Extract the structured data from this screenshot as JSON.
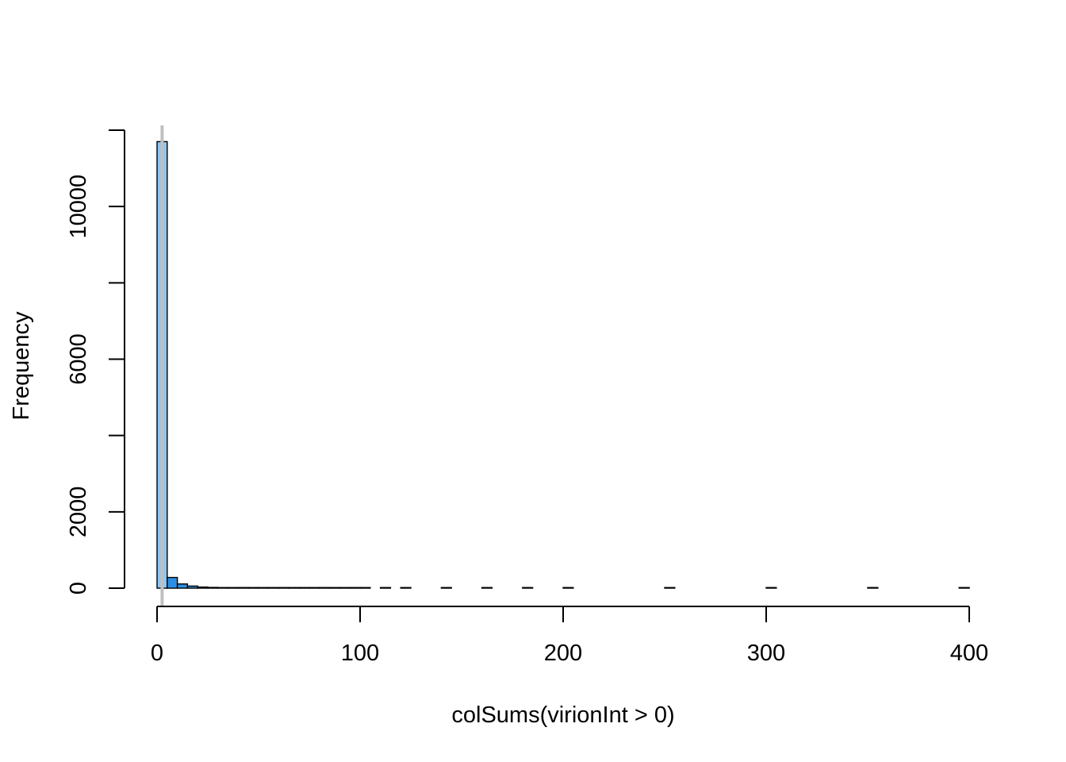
{
  "chart_data": {
    "type": "bar",
    "subtype": "histogram",
    "title": "",
    "xlabel": "colSums(virionInt > 0)",
    "ylabel": "Frequency",
    "xlim": [
      0,
      400
    ],
    "ylim": [
      0,
      12000
    ],
    "x_ticks": [
      0,
      100,
      200,
      300,
      400
    ],
    "y_ticks": [
      0,
      2000,
      4000,
      6000,
      8000,
      10000,
      12000
    ],
    "y_tick_labels": [
      "0",
      "2000",
      "",
      "6000",
      "",
      "10000",
      ""
    ],
    "bin_width": 5,
    "bin_starts": [
      0,
      5,
      10,
      15,
      20,
      25,
      30,
      35,
      40,
      45,
      50,
      55,
      60,
      65,
      70,
      75,
      80,
      85,
      90,
      95,
      100,
      110,
      120,
      140,
      160,
      180,
      200,
      250,
      300,
      350,
      395
    ],
    "counts": [
      11700,
      280,
      110,
      55,
      30,
      20,
      14,
      10,
      8,
      6,
      5,
      4,
      4,
      3,
      3,
      2,
      2,
      2,
      2,
      1,
      1,
      1,
      1,
      1,
      1,
      1,
      1,
      1,
      1,
      1,
      1
    ],
    "highlight_bin_index": 0,
    "bar_color": "#2b8fe6",
    "highlight_bar_color": "#8ec5f2",
    "bar_border_color": "#000000",
    "reference_line": {
      "x": 2.5,
      "color": "#c0c0c0"
    },
    "grid": false,
    "legend": "none"
  }
}
